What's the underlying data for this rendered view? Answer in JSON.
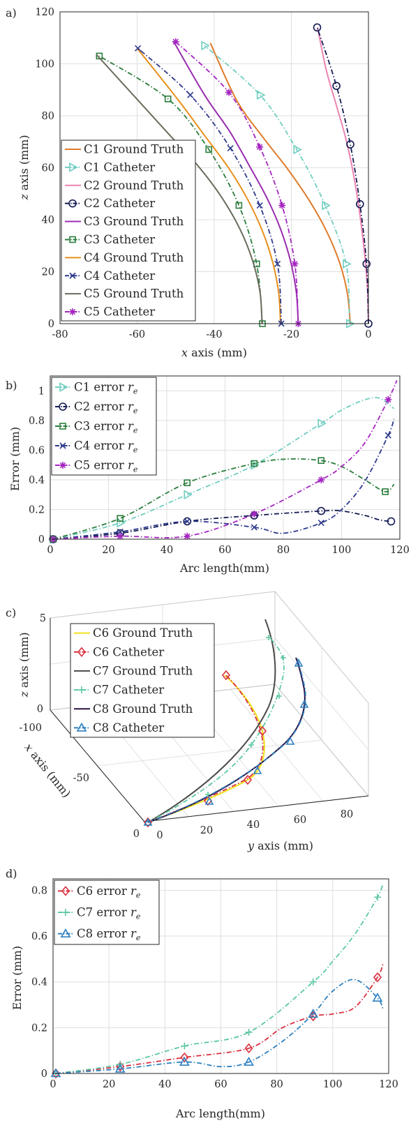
{
  "panels": {
    "a": {
      "label": "a)",
      "chart_data": {
        "type": "line",
        "xlabel_var": "x",
        "xlabel_rest": " axis (mm)",
        "ylabel_var": "z",
        "ylabel_rest": " axis (mm)",
        "xlim": [
          -80,
          0
        ],
        "ylim": [
          0,
          120
        ],
        "xticks": [
          -80,
          -60,
          -40,
          -20,
          0
        ],
        "yticks": [
          0,
          20,
          40,
          60,
          80,
          100,
          120
        ],
        "xtick_labels": [
          "-80",
          "-60",
          "-40",
          "-20",
          "0"
        ],
        "ytick_labels": [
          "0",
          "20",
          "40",
          "60",
          "80",
          "100",
          "120"
        ],
        "grid": true,
        "legend_position": "left",
        "series": [
          {
            "name": "C1 Ground Truth",
            "color": "#e07b2a",
            "style": "solid",
            "marker": "none",
            "x": [
              -4.7,
              -5.5,
              -7.6,
              -11.0,
              -15.6,
              -21.2,
              -27.5,
              -34.2,
              -41.0
            ],
            "y": [
              0,
              12,
              24,
              36,
              48,
              60,
              72,
              86,
              108
            ]
          },
          {
            "name": "C1 Catheter",
            "color": "#6ecdbf",
            "style": "dashdot",
            "marker": "triangle-right",
            "x": [
              -4.9,
              -5.8,
              -11.2,
              -18.6,
              -28.1,
              -42.5
            ],
            "y": [
              0,
              23,
              45.5,
              67,
              88,
              107
            ]
          },
          {
            "name": "C2 Ground Truth",
            "color": "#ec83b1",
            "style": "solid",
            "marker": "none",
            "x": [
              0,
              -0.2,
              -0.8,
              -1.7,
              -2.8,
              -4.2,
              -6.0,
              -8.3,
              -11.0,
              -13.2
            ],
            "y": [
              0,
              12,
              24,
              36,
              48,
              60,
              72,
              84,
              98,
              114
            ]
          },
          {
            "name": "C2 Catheter",
            "color": "#131a52",
            "style": "dashdot",
            "marker": "circle",
            "x": [
              0,
              -0.5,
              -2.2,
              -4.7,
              -8.3,
              -13.3
            ],
            "y": [
              0,
              23,
              46,
              69,
              91.5,
              114
            ]
          },
          {
            "name": "C3 Ground Truth",
            "color": "#9a2db0",
            "style": "solid",
            "marker": "none",
            "x": [
              -18.2,
              -18.7,
              -20.2,
              -22.7,
              -26.2,
              -30.6,
              -36.0,
              -42.5,
              -50.5
            ],
            "y": [
              0,
              12,
              24,
              36,
              48,
              60,
              74,
              88,
              108.5
            ]
          },
          {
            "name": "C3 Catheter",
            "color": "#2a7d3c",
            "style": "dashdot",
            "marker": "square",
            "x": [
              -27.5,
              -29.0,
              -33.6,
              -41.4,
              -52.0,
              -69.8
            ],
            "y": [
              0,
              23,
              45.5,
              67,
              86.5,
              103
            ]
          },
          {
            "name": "C4 Ground Truth",
            "color": "#e8901c",
            "style": "solid",
            "marker": "none",
            "x": [
              -22.8,
              -23.3,
              -24.9,
              -27.6,
              -31.4,
              -36.3,
              -42.3,
              -49.3,
              -60.0
            ],
            "y": [
              0,
              12,
              24,
              36,
              48,
              60,
              72,
              86,
              106
            ]
          },
          {
            "name": "C4 Catheter",
            "color": "#2e3a8c",
            "style": "dashdot",
            "marker": "x",
            "x": [
              -22.6,
              -23.6,
              -28.2,
              -35.8,
              -46.2,
              -59.8
            ],
            "y": [
              0,
              23,
              45.5,
              67.5,
              88,
              106
            ]
          },
          {
            "name": "C5 Ground Truth",
            "color": "#6b6b5d",
            "style": "solid",
            "marker": "none",
            "x": [
              -27.6,
              -28.1,
              -30.0,
              -33.2,
              -37.8,
              -43.8,
              -51.2,
              -59.8,
              -70.5
            ],
            "y": [
              0,
              12,
              24,
              36,
              48,
              60,
              72,
              86,
              103.5
            ]
          },
          {
            "name": "C5 Catheter",
            "color": "#a424c0",
            "style": "dashdot",
            "marker": "star",
            "x": [
              -18.2,
              -19.1,
              -22.4,
              -28.2,
              -36.2,
              -50.0
            ],
            "y": [
              0,
              23,
              45.5,
              68,
              89,
              108.5
            ]
          }
        ]
      }
    },
    "b": {
      "label": "b)",
      "chart_data": {
        "type": "line",
        "xlabel": "Arc length(mm)",
        "ylabel": "Error (mm)",
        "xlim": [
          0,
          120
        ],
        "ylim": [
          0,
          1.1
        ],
        "xticks": [
          0,
          20,
          40,
          60,
          80,
          100,
          120
        ],
        "yticks": [
          0,
          0.2,
          0.4,
          0.6,
          0.8,
          1
        ],
        "xtick_labels": [
          "0",
          "20",
          "40",
          "60",
          "80",
          "100",
          "120"
        ],
        "ytick_labels": [
          "0",
          "0.2",
          "0.4",
          "0.6",
          "0.8",
          "1"
        ],
        "grid": true,
        "legend_position": "top-left",
        "series": [
          {
            "name_prefix": "C1 error ",
            "name_var": "r",
            "name_sub": "e",
            "color": "#6ecdbf",
            "marker": "triangle-right",
            "x": [
              1,
              24,
              47,
              70,
              93,
              100,
              108,
              113,
              118
            ],
            "y": [
              0,
              0.11,
              0.3,
              0.5,
              0.78,
              0.87,
              0.94,
              0.95,
              0.88
            ]
          },
          {
            "name_prefix": "C2 error ",
            "name_var": "r",
            "name_sub": "e",
            "color": "#131a52",
            "marker": "circle",
            "x": [
              1,
              24,
              47,
              70,
              93,
              100,
              108,
              113,
              117
            ],
            "y": [
              0,
              0.04,
              0.12,
              0.16,
              0.19,
              0.19,
              0.16,
              0.13,
              0.12
            ]
          },
          {
            "name_prefix": "C3 error ",
            "name_var": "r",
            "name_sub": "e",
            "color": "#2a7d3c",
            "marker": "square",
            "x": [
              1,
              24,
              47,
              70,
              82,
              93,
              100,
              108,
              115,
              118
            ],
            "y": [
              0,
              0.14,
              0.38,
              0.51,
              0.54,
              0.53,
              0.49,
              0.4,
              0.32,
              0.37
            ]
          },
          {
            "name_prefix": "C4 error ",
            "name_var": "r",
            "name_sub": "e",
            "color": "#2e3a8c",
            "marker": "x",
            "x": [
              1,
              24,
              47,
              70,
              80,
              93,
              100,
              108,
              116,
              118
            ],
            "y": [
              0,
              0.05,
              0.12,
              0.08,
              0.04,
              0.11,
              0.2,
              0.39,
              0.7,
              0.81
            ]
          },
          {
            "name_prefix": "C5 error ",
            "name_var": "r",
            "name_sub": "e",
            "color": "#a424c0",
            "marker": "star",
            "x": [
              1,
              24,
              47,
              70,
              93,
              100,
              108,
              116,
              119
            ],
            "y": [
              0,
              0.02,
              0.02,
              0.17,
              0.4,
              0.49,
              0.65,
              0.94,
              1.07
            ]
          }
        ]
      }
    },
    "c": {
      "label": "c)",
      "chart_data": {
        "type": "line",
        "view": "3d",
        "xlabel_var": "x",
        "xlabel_rest": " axis (mm)",
        "ylabel_var": "y",
        "ylabel_rest": " axis (mm)",
        "zlabel_var": "z",
        "zlabel_rest": " axis (mm)",
        "xlim": [
          -100,
          0
        ],
        "ylim": [
          0,
          80
        ],
        "zlim": [
          0,
          5
        ],
        "xtick_labels": [
          "-100",
          "-50",
          "0"
        ],
        "ytick_labels": [
          "0",
          "20",
          "40",
          "60",
          "80"
        ],
        "ztick_labels": [
          "0",
          "5"
        ],
        "grid": true,
        "legend_position": "top-left",
        "series": [
          {
            "name": "C6 Ground Truth",
            "color": "#f0e01a",
            "style": "solid",
            "marker": "none"
          },
          {
            "name": "C6 Catheter",
            "color": "#d93040",
            "style": "dashdot",
            "marker": "diamond"
          },
          {
            "name": "C7 Ground Truth",
            "color": "#4a4a46",
            "style": "solid",
            "marker": "none"
          },
          {
            "name": "C7 Catheter",
            "color": "#5cc8a0",
            "style": "dashdot",
            "marker": "plus"
          },
          {
            "name": "C8 Ground Truth",
            "color": "#2a1040",
            "style": "solid",
            "marker": "none"
          },
          {
            "name": "C8 Catheter",
            "color": "#2e80c0",
            "style": "dashdot",
            "marker": "triangle-up"
          }
        ]
      }
    },
    "d": {
      "label": "d)",
      "chart_data": {
        "type": "line",
        "xlabel": "Arc length(mm)",
        "ylabel": "Error (mm)",
        "xlim": [
          0,
          120
        ],
        "ylim": [
          0,
          0.85
        ],
        "xticks": [
          0,
          20,
          40,
          60,
          80,
          100,
          120
        ],
        "yticks": [
          0,
          0.2,
          0.4,
          0.6,
          0.8
        ],
        "xtick_labels": [
          "0",
          "20",
          "40",
          "60",
          "80",
          "100",
          "120"
        ],
        "ytick_labels": [
          "0",
          "0.2",
          "0.4",
          "0.6",
          "0.8"
        ],
        "grid": true,
        "legend_position": "top-left",
        "series": [
          {
            "name_prefix": "C6 error ",
            "name_var": "r",
            "name_sub": "e",
            "color": "#d93040",
            "marker": "diamond",
            "x": [
              1,
              24,
              47,
              70,
              82,
              93,
              100,
              108,
              116,
              118
            ],
            "y": [
              0,
              0.03,
              0.07,
              0.11,
              0.2,
              0.25,
              0.26,
              0.29,
              0.42,
              0.48
            ]
          },
          {
            "name_prefix": "C7 error ",
            "name_var": "r",
            "name_sub": "e",
            "color": "#5cc8a0",
            "marker": "plus",
            "x": [
              1,
              24,
              47,
              70,
              93,
              100,
              108,
              116,
              118
            ],
            "y": [
              0,
              0.04,
              0.12,
              0.18,
              0.4,
              0.49,
              0.61,
              0.77,
              0.83
            ]
          },
          {
            "name_prefix": "C8 error ",
            "name_var": "r",
            "name_sub": "e",
            "color": "#2e80c0",
            "marker": "triangle-up",
            "x": [
              1,
              24,
              47,
              60,
              70,
              82,
              93,
              100,
              108,
              116,
              118
            ],
            "y": [
              0,
              0.02,
              0.05,
              0.03,
              0.05,
              0.14,
              0.26,
              0.36,
              0.41,
              0.33,
              0.28
            ]
          }
        ]
      }
    }
  }
}
